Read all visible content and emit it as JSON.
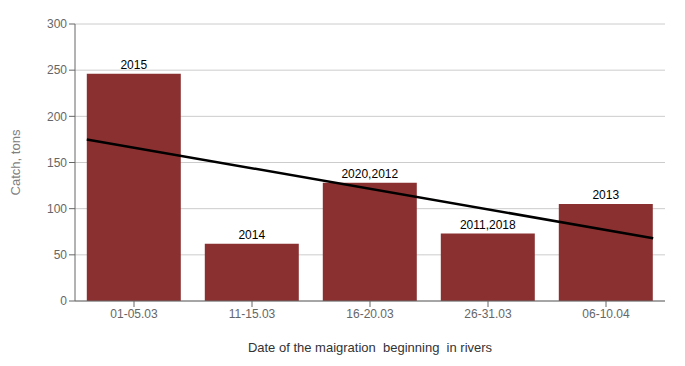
{
  "chart_data": {
    "type": "bar",
    "categories": [
      "01-05.03",
      "11-15.03",
      "16-20.03",
      "26-31.03",
      "06-10.04"
    ],
    "values": [
      246,
      62,
      128,
      73,
      105
    ],
    "color": "#8B3030",
    "bar_labels": [
      "2015",
      "2014",
      "2020,2012",
      "2011,2018",
      "2013"
    ],
    "xlabel": "Date of the maigration  beginning  in rivers",
    "ylabel": "Catch, tons",
    "ylim": [
      0,
      300
    ],
    "yticks": [
      0,
      50,
      100,
      150,
      200,
      250,
      300
    ],
    "grid": true,
    "trend_line": {
      "x": [
        -0.4,
        4.4
      ],
      "y": [
        175,
        68
      ],
      "color": "#000000"
    }
  }
}
